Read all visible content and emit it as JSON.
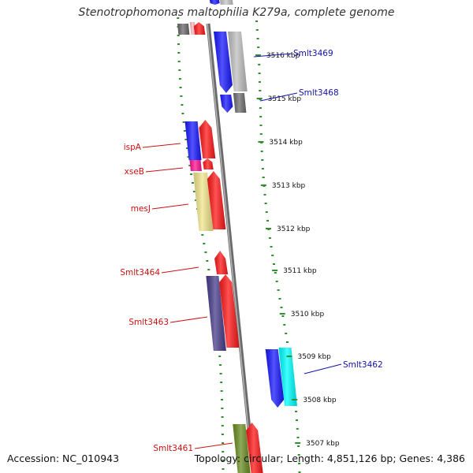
{
  "title": "Stenotrophomonas maltophilia K279a, complete genome",
  "footer": {
    "accession": "Accession: NC_010943",
    "info": "Topology: circular; Length: 4,851,126 bp; Genes: 4,386"
  },
  "colors": {
    "background": "#ffffff",
    "backbone": "#8c8c8c",
    "ruler_dots": "#2f8f2f",
    "forward_label": "#cc1111",
    "reverse_label": "#1111aa",
    "leader_forward": "#cc1111",
    "leader_reverse": "#1111aa"
  },
  "ticks": [
    {
      "label": "3516 kbp"
    },
    {
      "label": "3515 kbp"
    },
    {
      "label": "3514 kbp"
    },
    {
      "label": "3513 kbp"
    },
    {
      "label": "3512 kbp"
    },
    {
      "label": "3511 kbp"
    },
    {
      "label": "3510 kbp"
    },
    {
      "label": "3509 kbp"
    },
    {
      "label": "3508 kbp"
    },
    {
      "label": "3507 kbp"
    }
  ],
  "labeled_genes": [
    {
      "name": "Smlt3469",
      "strand": "reverse"
    },
    {
      "name": "Smlt3468",
      "strand": "reverse"
    },
    {
      "name": "ispA",
      "strand": "forward"
    },
    {
      "name": "xseB",
      "strand": "forward"
    },
    {
      "name": "mesJ",
      "strand": "forward"
    },
    {
      "name": "Smlt3464",
      "strand": "forward"
    },
    {
      "name": "Smlt3463",
      "strand": "forward"
    },
    {
      "name": "Smlt3462",
      "strand": "reverse"
    },
    {
      "name": "Smlt3461",
      "strand": "forward"
    }
  ],
  "features": [
    {
      "name": "top-gray-left",
      "color": "#6b6b6b"
    },
    {
      "name": "top-pink",
      "color": "#ffb6c1"
    },
    {
      "name": "top-red",
      "color": "#ff1a1a"
    },
    {
      "name": "top-blue",
      "color": "#1a1aff"
    },
    {
      "name": "top-lightgray",
      "color": "#c8c8c8"
    },
    {
      "name": "smlt3469-blue",
      "color": "#1a1aff"
    },
    {
      "name": "smlt3469-gray",
      "color": "#c0c0c0"
    },
    {
      "name": "smlt3468-blue",
      "color": "#1a1aff"
    },
    {
      "name": "smlt3468-gray",
      "color": "#707070"
    },
    {
      "name": "ispA-blue",
      "color": "#1a1aff"
    },
    {
      "name": "ispA-red",
      "color": "#ff1a1a"
    },
    {
      "name": "xseB-magenta",
      "color": "#ff1493"
    },
    {
      "name": "xseB-red",
      "color": "#ff1a1a"
    },
    {
      "name": "mesJ-khaki",
      "color": "#f0e68c"
    },
    {
      "name": "mesJ-red",
      "color": "#ff1a1a"
    },
    {
      "name": "smlt3464-red",
      "color": "#ff1a1a"
    },
    {
      "name": "smlt3463-slate",
      "color": "#483d8b"
    },
    {
      "name": "smlt3463-red",
      "color": "#ff1a1a"
    },
    {
      "name": "smlt3462-blue",
      "color": "#1a1aff"
    },
    {
      "name": "smlt3462-cyan",
      "color": "#00ffff"
    },
    {
      "name": "smlt3461-olive",
      "color": "#6b8e23"
    },
    {
      "name": "smlt3461-red",
      "color": "#ff1a1a"
    }
  ]
}
